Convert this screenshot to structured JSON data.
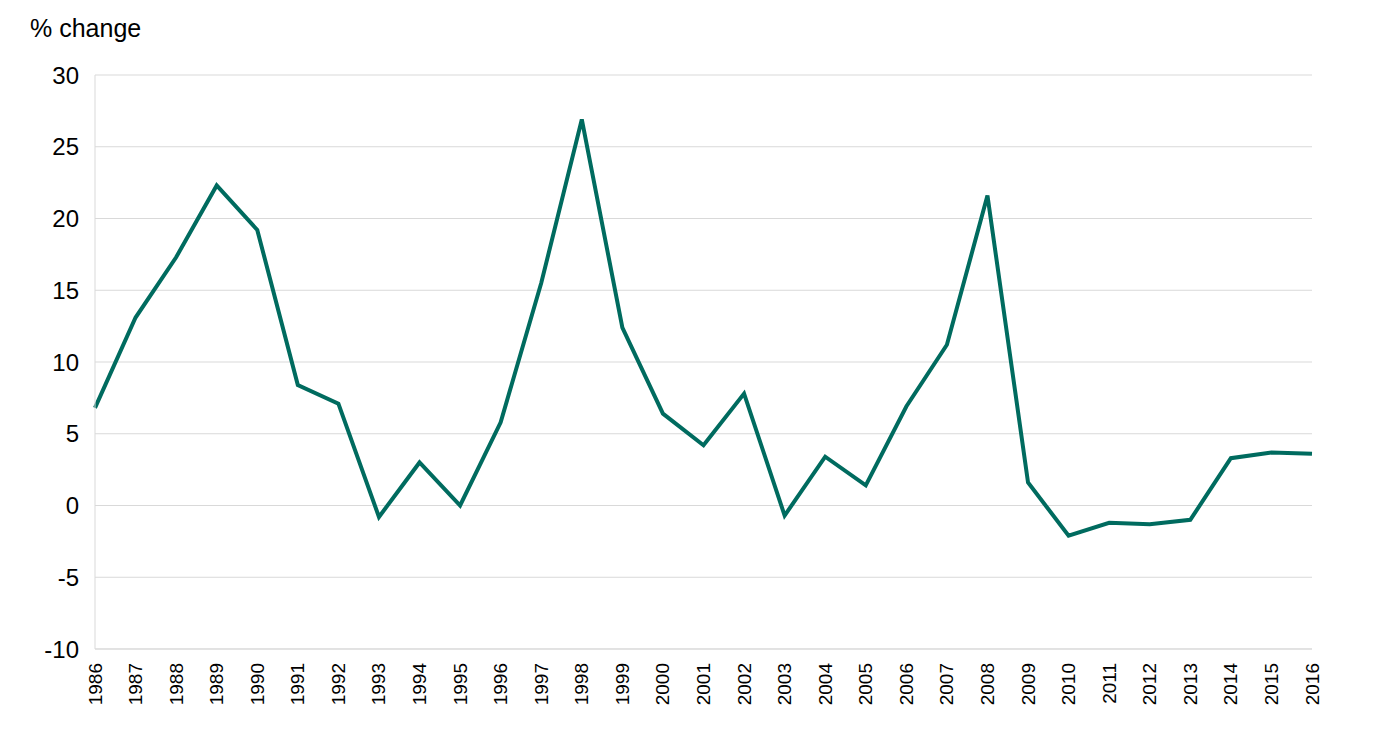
{
  "chart_data": {
    "type": "line",
    "y_label": "% change",
    "categories": [
      "1986",
      "1987",
      "1988",
      "1989",
      "1990",
      "1991",
      "1992",
      "1993",
      "1994",
      "1995",
      "1996",
      "1997",
      "1998",
      "1999",
      "2000",
      "2001",
      "2002",
      "2003",
      "2004",
      "2005",
      "2006",
      "2007",
      "2008",
      "2009",
      "2010",
      "2011",
      "2012",
      "2013",
      "2014",
      "2015",
      "2016"
    ],
    "values": [
      6.8,
      13.1,
      17.3,
      22.3,
      19.2,
      8.4,
      7.1,
      -0.8,
      3.0,
      0.0,
      5.8,
      15.5,
      26.9,
      12.4,
      6.4,
      4.2,
      7.8,
      -0.7,
      3.4,
      1.4,
      6.9,
      11.2,
      21.6,
      1.6,
      -2.1,
      -1.2,
      -1.3,
      -1.0,
      3.3,
      3.7,
      3.6
    ],
    "color": "#006b5f",
    "ylim": [
      -10,
      30
    ],
    "yticks": [
      -10,
      -5,
      0,
      5,
      10,
      15,
      20,
      25,
      30
    ],
    "grid": true
  }
}
